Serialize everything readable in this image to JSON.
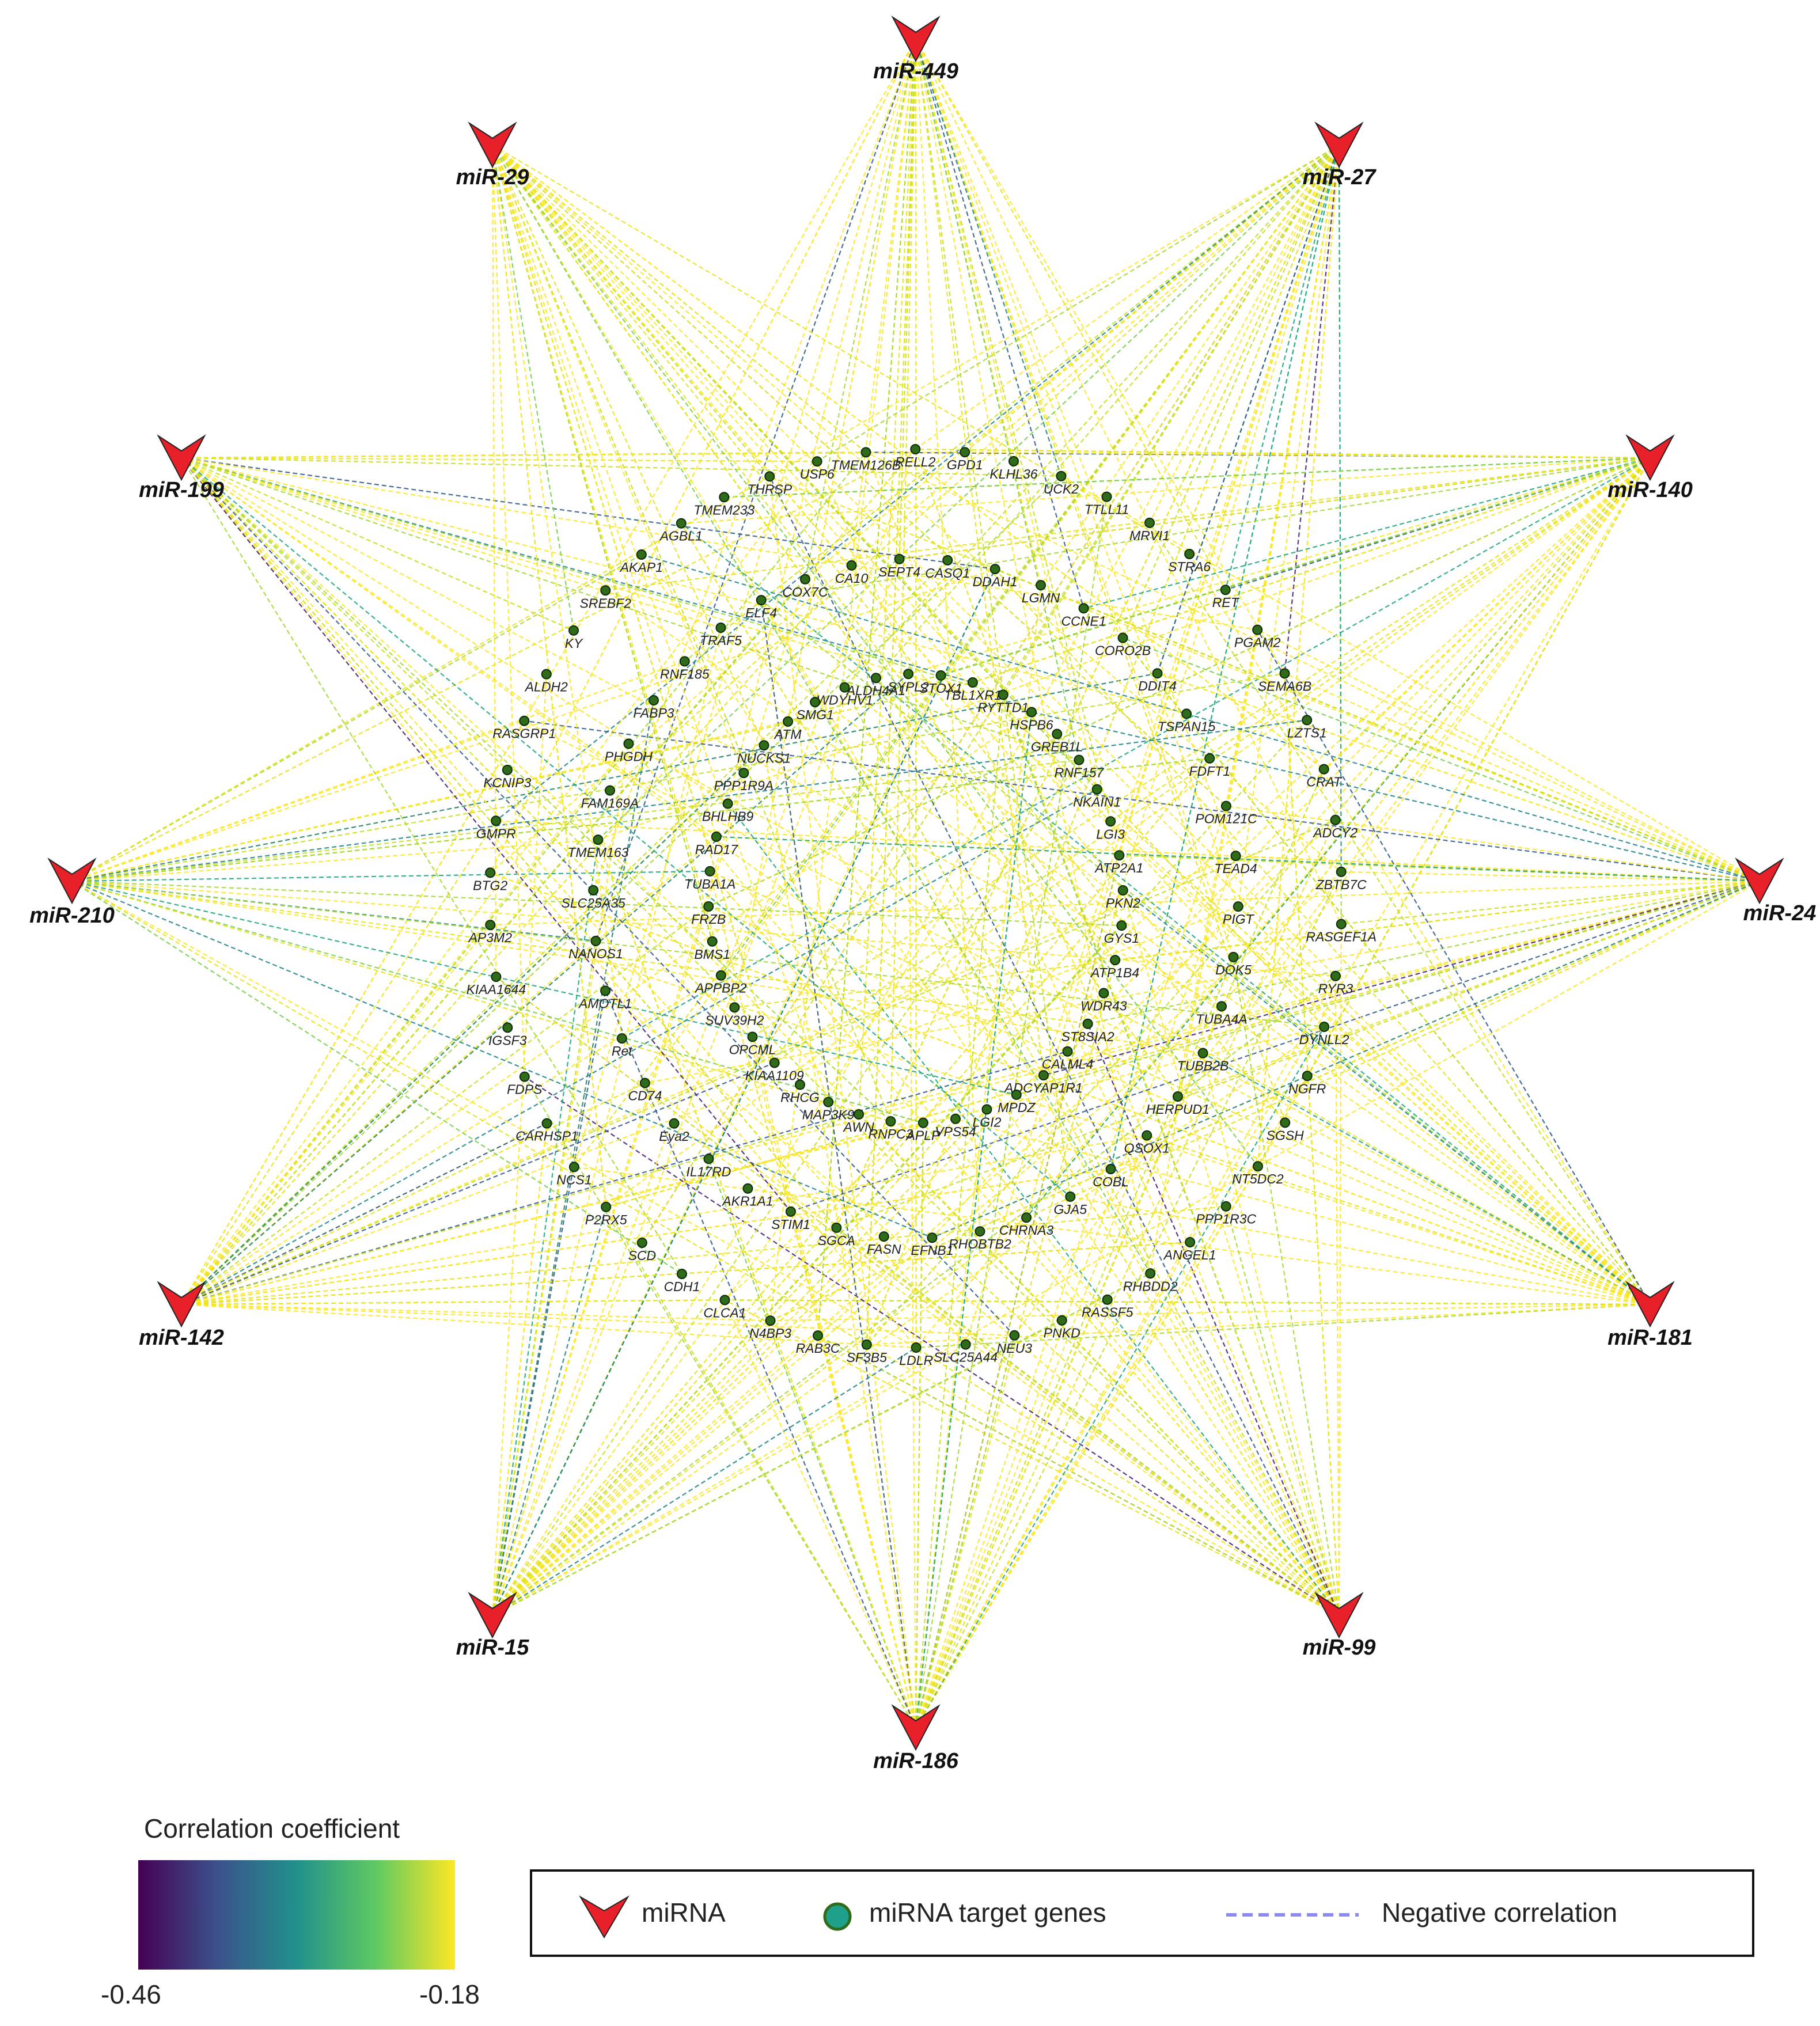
{
  "colors": {
    "mirna_fill": "#e8202a",
    "gene_fill": "#2f6b1a",
    "negative_line": "#8a8af0"
  },
  "mirnas": [
    "miR-449",
    "miR-27",
    "miR-140",
    "miR-24",
    "miR-181",
    "miR-99",
    "miR-186",
    "miR-15",
    "miR-142",
    "miR-210",
    "miR-199",
    "miR-29"
  ],
  "genes": [
    "THRSP",
    "USP6",
    "TMEM126B",
    "RELL2",
    "GPD1",
    "KLHL36",
    "UCK2",
    "TTLL11",
    "MRVI1",
    "STRA6",
    "RET",
    "PGAM2",
    "SEMA6B",
    "LZTS1",
    "CRAT",
    "ADCY2",
    "ZBTB7C",
    "RASGEF1A",
    "RYR3",
    "DYNLL2",
    "NGFR",
    "SGSH",
    "NT5DC2",
    "PPP1R3C",
    "ANGEL1",
    "RHBDD2",
    "RASSF5",
    "PNKD",
    "NEU3",
    "SLC25A44",
    "LDLR",
    "SF3B5",
    "RAB3C",
    "N4BP3",
    "CLCA1",
    "CDH1",
    "SCD",
    "P2RX5",
    "NCS1",
    "CARHSP1",
    "FDPS",
    "IGSF3",
    "KIAA1644",
    "AP3M2",
    "BTG2",
    "GMPR",
    "KCNIP3",
    "RASGRP1",
    "ALDH2",
    "KY",
    "SREBF2",
    "AKAP1",
    "AGBL1",
    "TMEM233",
    "COX7C",
    "CA10",
    "SEPT4",
    "CASQ1",
    "DDAH1",
    "LGMN",
    "CCNE1",
    "CORO2B",
    "DDIT4",
    "TSPAN15",
    "FDFT1",
    "POM121C",
    "TEAD4",
    "PIGT",
    "DOK5",
    "TUBA4A",
    "TUBB2B",
    "HERPUD1",
    "QSOX1",
    "COBL",
    "GJA5",
    "CHRNA3",
    "RHOBTB2",
    "EFNB1",
    "FASN",
    "SGCA",
    "STIM1",
    "AKR1A1",
    "IL17RD",
    "Eya2",
    "CD74",
    "Ret",
    "AMOTL1",
    "NANOS1",
    "SLC25A35",
    "TMEM163",
    "FAM169A",
    "PHGDH",
    "FABP3",
    "RNF185",
    "TRAF5",
    "ELF4",
    "WDYHV1",
    "ALDH4A1",
    "SYPL2",
    "STOX1",
    "TBL1XR1",
    "RYTTD1",
    "HSPB6",
    "GREB1L",
    "RNF157",
    "NKAIN1",
    "LGI3",
    "ATP2A1",
    "PKN2",
    "GYS1",
    "ATP1B4",
    "WDR43",
    "ST8SIA2",
    "CALML4",
    "ADCYAP1R1",
    "MPDZ",
    "LGI2",
    "VPS54",
    "APLP",
    "RNPC3",
    "AWN",
    "MAP3K9",
    "RHCG",
    "KIAA1109",
    "OPCML",
    "SUV39H2",
    "APPBP2",
    "BMS1",
    "FRZB",
    "TUBA1A",
    "RAD17",
    "BHLHB9",
    "PPP1R9A",
    "NUCKS1",
    "ATM",
    "SMG1"
  ],
  "colorbar": {
    "title": "Correlation coefficient",
    "min_label": "-0.46",
    "max_label": "-0.18"
  },
  "legend": {
    "mirna_label": "miRNA",
    "gene_label": "miRNA target genes",
    "negative_label": "Negative correlation"
  }
}
